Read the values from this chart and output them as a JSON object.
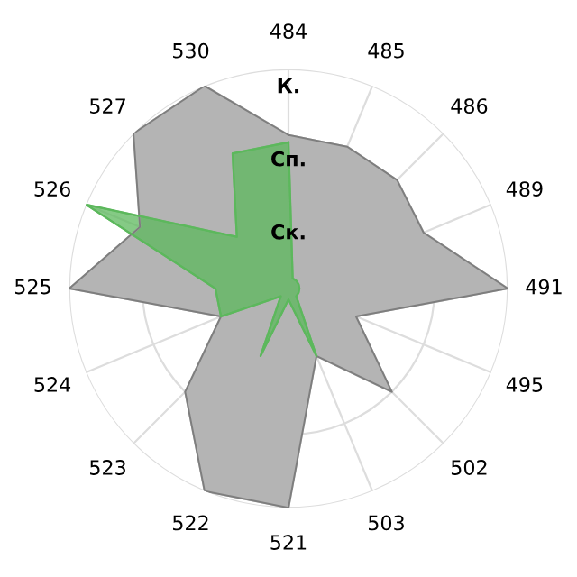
{
  "chart_data": {
    "type": "radar",
    "categories": [
      "484",
      "485",
      "486",
      "489",
      "491",
      "495",
      "502",
      "503",
      "521",
      "522",
      "523",
      "524",
      "525",
      "526",
      "527",
      "530"
    ],
    "series": [
      {
        "color": "#b4b4b4",
        "values": [
          2.1,
          2.1,
          2.1,
          2.0,
          3.0,
          1.0,
          2.0,
          1.0,
          3.0,
          3.0,
          2.0,
          1.0,
          3.0,
          2.2,
          3.0,
          3.0
        ]
      },
      {
        "color": "#5cb85c",
        "values": [
          2.0,
          0.15,
          0.15,
          0.15,
          0.15,
          0.15,
          0.15,
          1.0,
          0.15,
          1.0,
          0.15,
          1.0,
          1.0,
          3.0,
          1.0,
          2.0
        ]
      }
    ],
    "ylim": [
      0,
      3
    ],
    "yticks": [
      {
        "value": 1,
        "label": "Ск."
      },
      {
        "value": 2,
        "label": "Сп."
      },
      {
        "value": 3,
        "label": "К."
      }
    ],
    "grid": true
  }
}
